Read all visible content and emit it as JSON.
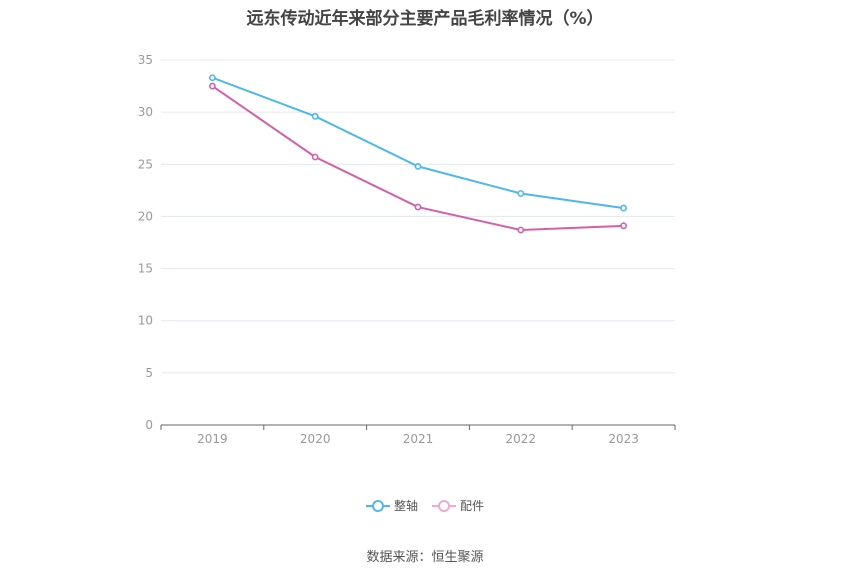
{
  "chart_data": {
    "type": "line",
    "title": "远东传动近年来部分主要产品毛利率情况（%）",
    "categories": [
      "2019",
      "2020",
      "2021",
      "2022",
      "2023"
    ],
    "series": [
      {
        "name": "整轴",
        "color": "#4db8ec",
        "values": [
          33.3,
          29.6,
          24.8,
          22.2,
          20.8
        ]
      },
      {
        "name": "配件",
        "color": "#d45fa6",
        "values": [
          32.5,
          25.7,
          20.9,
          18.7,
          19.1
        ]
      }
    ],
    "ylim": [
      0,
      35
    ],
    "yticks": [
      "0",
      "5",
      "10",
      "15",
      "20",
      "25",
      "30",
      "35"
    ],
    "grid": true,
    "legend_position": "bottom"
  },
  "source": "数据来源：恒生聚源"
}
